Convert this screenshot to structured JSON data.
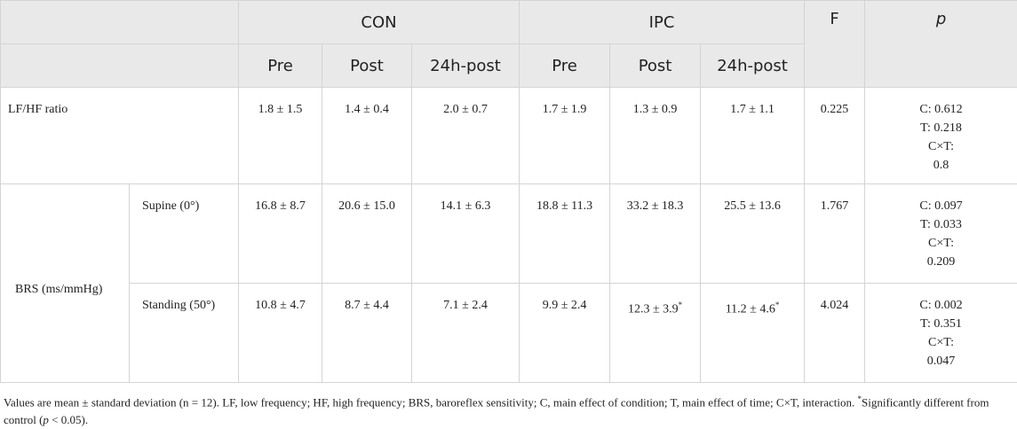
{
  "header": {
    "groups": [
      "CON",
      "IPC"
    ],
    "f": "F",
    "p": "p",
    "sub": [
      "Pre",
      "Post",
      "24h-post",
      "Pre",
      "Post",
      "24h-post"
    ]
  },
  "rows": [
    {
      "label": "LF/HF ratio",
      "cells": [
        "1.8 ± 1.5",
        "1.4 ± 0.4",
        "2.0 ± 0.7",
        "1.7 ± 1.9",
        "1.3 ± 0.9",
        "1.7 ± 1.1"
      ],
      "f": "0.225",
      "p": [
        "C: 0.612",
        "T: 0.218",
        "C×T:",
        "0.8"
      ]
    },
    {
      "group": "BRS (ms/mmHg)",
      "label": "Supine (0°)",
      "cells": [
        "16.8 ± 8.7",
        "20.6 ± 15.0",
        "14.1 ± 6.3",
        "18.8 ± 11.3",
        "33.2 ± 18.3",
        "25.5 ± 13.6"
      ],
      "f": "1.767",
      "p": [
        "C: 0.097",
        "T: 0.033",
        "C×T:",
        "0.209"
      ]
    },
    {
      "label": "Standing (50°)",
      "cells": [
        "10.8 ± 4.7",
        "8.7 ± 4.4",
        "7.1 ± 2.4",
        "9.9 ± 2.4",
        {
          "text": "12.3 ± 3.9",
          "sup": "*"
        },
        {
          "text": "11.2 ± 4.6",
          "sup": "*"
        }
      ],
      "f": "4.024",
      "p": [
        "C: 0.002",
        "T: 0.351",
        "C×T:",
        "0.047"
      ]
    }
  ],
  "footnote": {
    "text": "Values are mean ± standard deviation (n = 12). LF, low frequency; HF, high frequency; BRS, baroreflex sensitivity; C, main effect of condition; T, main effect of time; C×T, interaction. ",
    "sup": "*",
    "text2": "Significantly different from control (",
    "italic": "p",
    "text3": " < 0.05)."
  }
}
